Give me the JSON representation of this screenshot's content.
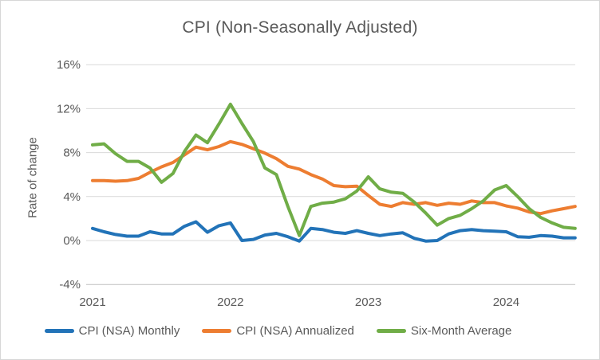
{
  "chart_data": {
    "type": "line",
    "title": "CPI (Non-Seasonally Adjusted)",
    "xlabel": "",
    "ylabel": "Rate of change",
    "grid": true,
    "legend_position": "bottom",
    "ylim": [
      -4,
      17
    ],
    "y_tick_labels": [
      "16%",
      "12%",
      "8%",
      "4%",
      "0%",
      "-4%"
    ],
    "y_tick_values": [
      16,
      12,
      8,
      4,
      0,
      -4
    ],
    "x_tick_labels": [
      "2021",
      "2022",
      "2023",
      "2024"
    ],
    "x_tick_month_index": [
      0,
      12,
      24,
      36
    ],
    "x": [
      "Jan 2021",
      "Feb 2021",
      "Mar 2021",
      "Apr 2021",
      "May 2021",
      "Jun 2021",
      "Jul 2021",
      "Aug 2021",
      "Sep 2021",
      "Oct 2021",
      "Nov 2021",
      "Dec 2021",
      "Jan 2022",
      "Feb 2022",
      "Mar 2022",
      "Apr 2022",
      "May 2022",
      "Jun 2022",
      "Jul 2022",
      "Aug 2022",
      "Sep 2022",
      "Oct 2022",
      "Nov 2022",
      "Dec 2022",
      "Jan 2023",
      "Feb 2023",
      "Mar 2023",
      "Apr 2023",
      "May 2023",
      "Jun 2023",
      "Jul 2023",
      "Aug 2023",
      "Sep 2023",
      "Oct 2023",
      "Nov 2023",
      "Dec 2023",
      "Jan 2024",
      "Feb 2024",
      "Mar 2024",
      "Apr 2024",
      "May 2024",
      "Jun 2024",
      "Jul 2024"
    ],
    "series": [
      {
        "name": "CPI (NSA) Monthly",
        "color": "#2273b8",
        "values": [
          1.1,
          0.8,
          0.55,
          0.4,
          0.4,
          0.8,
          0.6,
          0.6,
          1.3,
          1.7,
          0.75,
          1.35,
          1.6,
          0.0,
          0.1,
          0.5,
          0.65,
          0.35,
          -0.05,
          1.1,
          1.0,
          0.75,
          0.65,
          0.9,
          0.65,
          0.45,
          0.6,
          0.7,
          0.2,
          -0.05,
          0.0,
          0.6,
          0.9,
          1.0,
          0.9,
          0.85,
          0.8,
          0.35,
          0.3,
          0.45,
          0.4,
          0.25,
          0.25
        ]
      },
      {
        "name": "CPI (NSA) Annualized",
        "color": "#ed7d31",
        "values": [
          5.45,
          5.45,
          5.4,
          5.45,
          5.65,
          6.2,
          6.7,
          7.1,
          7.8,
          8.5,
          8.25,
          8.55,
          9.0,
          8.75,
          8.35,
          7.95,
          7.45,
          6.75,
          6.5,
          6.0,
          5.6,
          5.0,
          4.9,
          4.95,
          4.1,
          3.3,
          3.1,
          3.45,
          3.3,
          3.45,
          3.2,
          3.4,
          3.3,
          3.6,
          3.45,
          3.45,
          3.15,
          2.95,
          2.6,
          2.45,
          2.7,
          2.9,
          3.1
        ]
      },
      {
        "name": "Six-Month Average",
        "color": "#70ad47",
        "values": [
          8.7,
          8.8,
          7.9,
          7.2,
          7.2,
          6.6,
          5.3,
          6.1,
          8.1,
          9.6,
          8.9,
          10.6,
          12.4,
          10.65,
          9.0,
          6.6,
          6.0,
          3.1,
          0.45,
          3.1,
          3.4,
          3.5,
          3.8,
          4.5,
          5.8,
          4.7,
          4.4,
          4.3,
          3.5,
          2.5,
          1.4,
          2.0,
          2.3,
          2.9,
          3.6,
          4.6,
          5.0,
          4.0,
          2.9,
          2.1,
          1.6,
          1.2,
          1.1
        ]
      }
    ],
    "colors": {
      "gridline": "#d9d9d9",
      "axis_line": "#bfbfbf",
      "text": "#595959",
      "background": "#ffffff"
    }
  }
}
